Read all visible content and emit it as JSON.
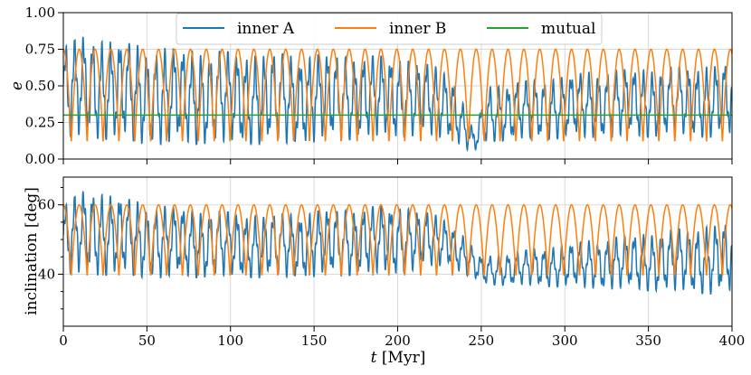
{
  "chart_data": [
    {
      "type": "line",
      "panel": "top",
      "ylabel": "e",
      "xlim": [
        0,
        400
      ],
      "ylim": [
        0.0,
        1.0
      ],
      "xticks": [
        0,
        50,
        100,
        150,
        200,
        250,
        300,
        350,
        400
      ],
      "yticks": [
        "0.00",
        "0.25",
        "0.50",
        "0.75",
        "1.00"
      ],
      "ytick_values": [
        0.0,
        0.25,
        0.5,
        0.75,
        1.0
      ],
      "legend": {
        "position": "top",
        "entries": [
          "inner A",
          "inner B",
          "mutual"
        ]
      },
      "series": [
        {
          "name": "inner A",
          "color": "#1f77b4",
          "description": "fast eccentricity oscillation ~5.4 Myr period; max ~0.85 near 10-20 Myr, amplitude shrinks near 245 Myr (min ~0.03)",
          "params": {
            "period": 5.4,
            "segments": [
              {
                "t": 0,
                "min": 0.12,
                "max": 0.78
              },
              {
                "t": 15,
                "min": 0.15,
                "max": 0.85
              },
              {
                "t": 50,
                "min": 0.1,
                "max": 0.76
              },
              {
                "t": 120,
                "min": 0.1,
                "max": 0.72
              },
              {
                "t": 200,
                "min": 0.15,
                "max": 0.7
              },
              {
                "t": 232,
                "min": 0.15,
                "max": 0.6
              },
              {
                "t": 245,
                "min": 0.03,
                "max": 0.2
              },
              {
                "t": 255,
                "min": 0.12,
                "max": 0.5
              },
              {
                "t": 320,
                "min": 0.15,
                "max": 0.6
              },
              {
                "t": 400,
                "min": 0.15,
                "max": 0.65
              }
            ]
          }
        },
        {
          "name": "inner B",
          "color": "#ff7f0e",
          "description": "regular eccentricity oscillation between 0.10 and 0.75, period ~9.5 Myr",
          "params": {
            "period": 9.5,
            "min": 0.1,
            "max": 0.75
          }
        },
        {
          "name": "mutual",
          "color": "#2ca02c",
          "description": "constant",
          "value": 0.3
        }
      ]
    },
    {
      "type": "line",
      "panel": "bottom",
      "xlabel": "t [Myr]",
      "ylabel": "inclination [deg]",
      "xlim": [
        0,
        400
      ],
      "ylim": [
        25,
        68
      ],
      "xticks": [
        0,
        50,
        100,
        150,
        200,
        250,
        300,
        350,
        400
      ],
      "yticks": [
        "40",
        "60"
      ],
      "ytick_values": [
        40,
        60
      ],
      "series": [
        {
          "name": "inner A",
          "color": "#1f77b4",
          "description": "inclination oscillation ~5.4 Myr period; peaks ~65 deg near 15 Myr, drops to 34-50 deg after 250 Myr",
          "params": {
            "period": 5.4,
            "segments": [
              {
                "t": 0,
                "min": 39,
                "max": 60
              },
              {
                "t": 15,
                "min": 40,
                "max": 65
              },
              {
                "t": 50,
                "min": 39,
                "max": 60
              },
              {
                "t": 120,
                "min": 39,
                "max": 57
              },
              {
                "t": 200,
                "min": 40,
                "max": 60
              },
              {
                "t": 230,
                "min": 43,
                "max": 56
              },
              {
                "t": 250,
                "min": 37,
                "max": 45
              },
              {
                "t": 320,
                "min": 36,
                "max": 50
              },
              {
                "t": 400,
                "min": 34,
                "max": 55
              }
            ]
          }
        },
        {
          "name": "inner B",
          "color": "#ff7f0e",
          "description": "regular inclination oscillation between 39 and 60 deg, period ~9.5 Myr",
          "params": {
            "period": 9.5,
            "min": 39,
            "max": 60
          }
        }
      ]
    }
  ],
  "labels": {
    "top_ylabel": "e",
    "bottom_ylabel": "inclination [deg]",
    "xlabel_t": "t",
    "xlabel_unit": " [Myr]"
  },
  "colors": {
    "inner_a": "#1f77b4",
    "inner_b": "#ff7f0e",
    "mutual": "#2ca02c",
    "grid": "#d9d9d9"
  }
}
